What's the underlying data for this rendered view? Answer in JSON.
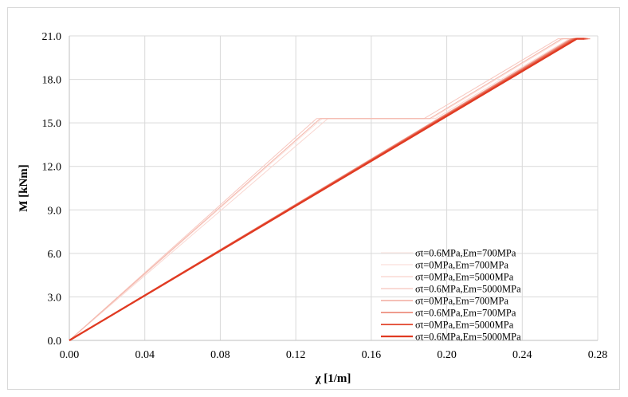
{
  "chart_data": {
    "type": "line",
    "title": "",
    "xlabel": "χ [1/m]",
    "ylabel": "M [kNm]",
    "xlim": [
      0,
      0.28
    ],
    "ylim": [
      0,
      21
    ],
    "xticks": [
      "0.00",
      "0.04",
      "0.08",
      "0.12",
      "0.16",
      "0.20",
      "0.24",
      "0.28"
    ],
    "yticks": [
      "0.0",
      "3.0",
      "6.0",
      "9.0",
      "12.0",
      "15.0",
      "18.0",
      "21.0"
    ],
    "grid": true,
    "legend_position": "bottom-right",
    "series": [
      {
        "name": "σt=0.6MPa,Em=700MPa",
        "color": "#fbe3de",
        "points": [
          [
            0,
            0
          ],
          [
            0.134,
            15.3
          ],
          [
            0.192,
            15.3
          ],
          [
            0.262,
            20.8
          ],
          [
            0.272,
            20.8
          ]
        ]
      },
      {
        "name": "σt=0MPa,Em=700MPa",
        "color": "#f9d7d1",
        "points": [
          [
            0,
            0
          ],
          [
            0.137,
            15.3
          ],
          [
            0.194,
            15.3
          ],
          [
            0.265,
            20.8
          ],
          [
            0.275,
            20.8
          ]
        ]
      },
      {
        "name": "σt=0MPa,Em=5000MPa",
        "color": "#f7c7bf",
        "points": [
          [
            0,
            0
          ],
          [
            0.131,
            15.3
          ],
          [
            0.188,
            15.3
          ],
          [
            0.259,
            20.8
          ],
          [
            0.268,
            20.8
          ]
        ]
      },
      {
        "name": "σt=0.6MPa,Em=5000MPa",
        "color": "#f4b6ab",
        "points": [
          [
            0,
            0
          ],
          [
            0.133,
            15.3
          ],
          [
            0.191,
            15.3
          ],
          [
            0.261,
            20.8
          ],
          [
            0.27,
            20.8
          ]
        ]
      },
      {
        "name": "σt=0MPa,Em=700MPa",
        "color": "#ef9a8c",
        "points": [
          [
            0,
            0
          ],
          [
            0.266,
            20.8
          ],
          [
            0.276,
            20.8
          ]
        ]
      },
      {
        "name": "σt=0.6MPa,Em=700MPa",
        "color": "#ea7b69",
        "points": [
          [
            0,
            0
          ],
          [
            0.267,
            20.8
          ],
          [
            0.275,
            20.8
          ]
        ]
      },
      {
        "name": "σt=0MPa,Em=5000MPa",
        "color": "#e55a44",
        "points": [
          [
            0,
            0
          ],
          [
            0.268,
            20.8
          ],
          [
            0.274,
            20.8
          ]
        ]
      },
      {
        "name": "σt=0.6MPa,Em=5000MPa",
        "color": "#e03a22",
        "points": [
          [
            0,
            0
          ],
          [
            0.269,
            20.8
          ],
          [
            0.273,
            20.8
          ]
        ]
      }
    ]
  }
}
